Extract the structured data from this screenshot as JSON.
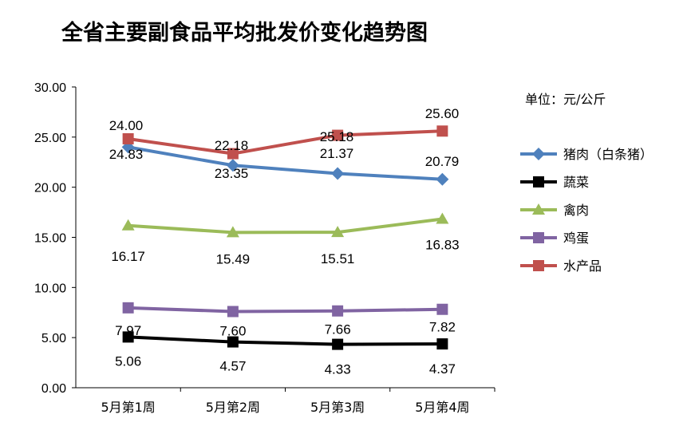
{
  "chart_data": {
    "type": "line",
    "title": "全省主要副食品平均批发价变化趋势图",
    "unit_label": "单位：元/公斤",
    "categories": [
      "5月第1周",
      "5月第2周",
      "5月第3周",
      "5月第4周"
    ],
    "ylim": [
      0,
      30
    ],
    "yticks": [
      "0.00",
      "5.00",
      "10.00",
      "15.00",
      "20.00",
      "25.00",
      "30.00"
    ],
    "legend_position": "right",
    "series": [
      {
        "name": "猪肉（白条猪）",
        "color": "#4f81bd",
        "marker": "diamond",
        "values": [
          24.0,
          22.18,
          21.37,
          20.79
        ],
        "labels": [
          "24.00",
          "22.18",
          "21.37",
          "20.79"
        ]
      },
      {
        "name": "蔬菜",
        "color": "#000000",
        "marker": "square",
        "values": [
          5.06,
          4.57,
          4.33,
          4.37
        ],
        "labels": [
          "5.06",
          "4.57",
          "4.33",
          "4.37"
        ]
      },
      {
        "name": "禽肉",
        "color": "#9bbb59",
        "marker": "triangle",
        "values": [
          16.17,
          15.49,
          15.51,
          16.83
        ],
        "labels": [
          "16.17",
          "15.49",
          "15.51",
          "16.83"
        ]
      },
      {
        "name": "鸡蛋",
        "color": "#8064a2",
        "marker": "square",
        "values": [
          7.97,
          7.6,
          7.66,
          7.82
        ],
        "labels": [
          "7.97",
          "7.60",
          "7.66",
          "7.82"
        ]
      },
      {
        "name": "水产品",
        "color": "#c0504d",
        "marker": "square",
        "values": [
          24.83,
          23.35,
          25.18,
          25.6
        ],
        "labels": [
          "24.83",
          "23.35",
          "25.18",
          "25.60"
        ]
      }
    ]
  }
}
